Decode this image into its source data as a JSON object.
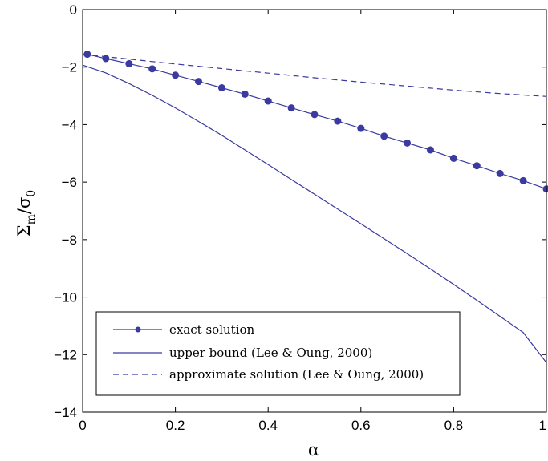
{
  "chart_data": {
    "type": "line",
    "xlabel": "α",
    "ylabel": {
      "main": "Σ",
      "sub1": "m",
      "slash": "/σ",
      "sub2": "0"
    },
    "xlim": [
      0,
      1
    ],
    "ylim": [
      -14,
      0
    ],
    "xticks": [
      0,
      0.2,
      0.4,
      0.6,
      0.8,
      1
    ],
    "xtick_labels": [
      "0",
      "0.2",
      "0.4",
      "0.6",
      "0.8",
      "1"
    ],
    "yticks": [
      0,
      -2,
      -4,
      -6,
      -8,
      -10,
      -12,
      -14
    ],
    "ytick_labels": [
      "0",
      "−2",
      "−4",
      "−6",
      "−8",
      "−10",
      "−12",
      "−14"
    ],
    "grid": false,
    "legend_position": "bottom-left",
    "colors": {
      "series": "#3a3aa0",
      "axis": "#000000"
    },
    "series": [
      {
        "name": "exact solution",
        "style": "solid-markers",
        "x": [
          0.01,
          0.05,
          0.1,
          0.15,
          0.2,
          0.25,
          0.3,
          0.35,
          0.4,
          0.45,
          0.5,
          0.55,
          0.6,
          0.65,
          0.7,
          0.75,
          0.8,
          0.85,
          0.9,
          0.95,
          1.0
        ],
        "y": [
          -1.55,
          -1.7,
          -1.88,
          -2.06,
          -2.28,
          -2.5,
          -2.72,
          -2.94,
          -3.18,
          -3.42,
          -3.65,
          -3.88,
          -4.13,
          -4.4,
          -4.64,
          -4.88,
          -5.17,
          -5.43,
          -5.7,
          -5.95,
          -6.24
        ]
      },
      {
        "name": "upper bound (Lee & Oung, 2000)",
        "style": "solid",
        "x": [
          0.0,
          0.05,
          0.1,
          0.15,
          0.2,
          0.25,
          0.3,
          0.35,
          0.4,
          0.45,
          0.5,
          0.55,
          0.6,
          0.65,
          0.7,
          0.75,
          0.8,
          0.85,
          0.9,
          0.95,
          1.0
        ],
        "y": [
          -1.93,
          -2.2,
          -2.57,
          -2.98,
          -3.42,
          -3.89,
          -4.37,
          -4.88,
          -5.39,
          -5.91,
          -6.42,
          -6.94,
          -7.45,
          -7.97,
          -8.49,
          -9.02,
          -9.56,
          -10.11,
          -10.67,
          -11.23,
          -12.28
        ]
      },
      {
        "name": "approximate solution (Lee & Oung, 2000)",
        "style": "dashed",
        "x": [
          0.0,
          0.1,
          0.2,
          0.3,
          0.4,
          0.5,
          0.6,
          0.7,
          0.8,
          0.9,
          1.0
        ],
        "y": [
          -1.55,
          -1.72,
          -1.89,
          -2.05,
          -2.21,
          -2.37,
          -2.52,
          -2.66,
          -2.8,
          -2.92,
          -3.02
        ]
      }
    ]
  }
}
